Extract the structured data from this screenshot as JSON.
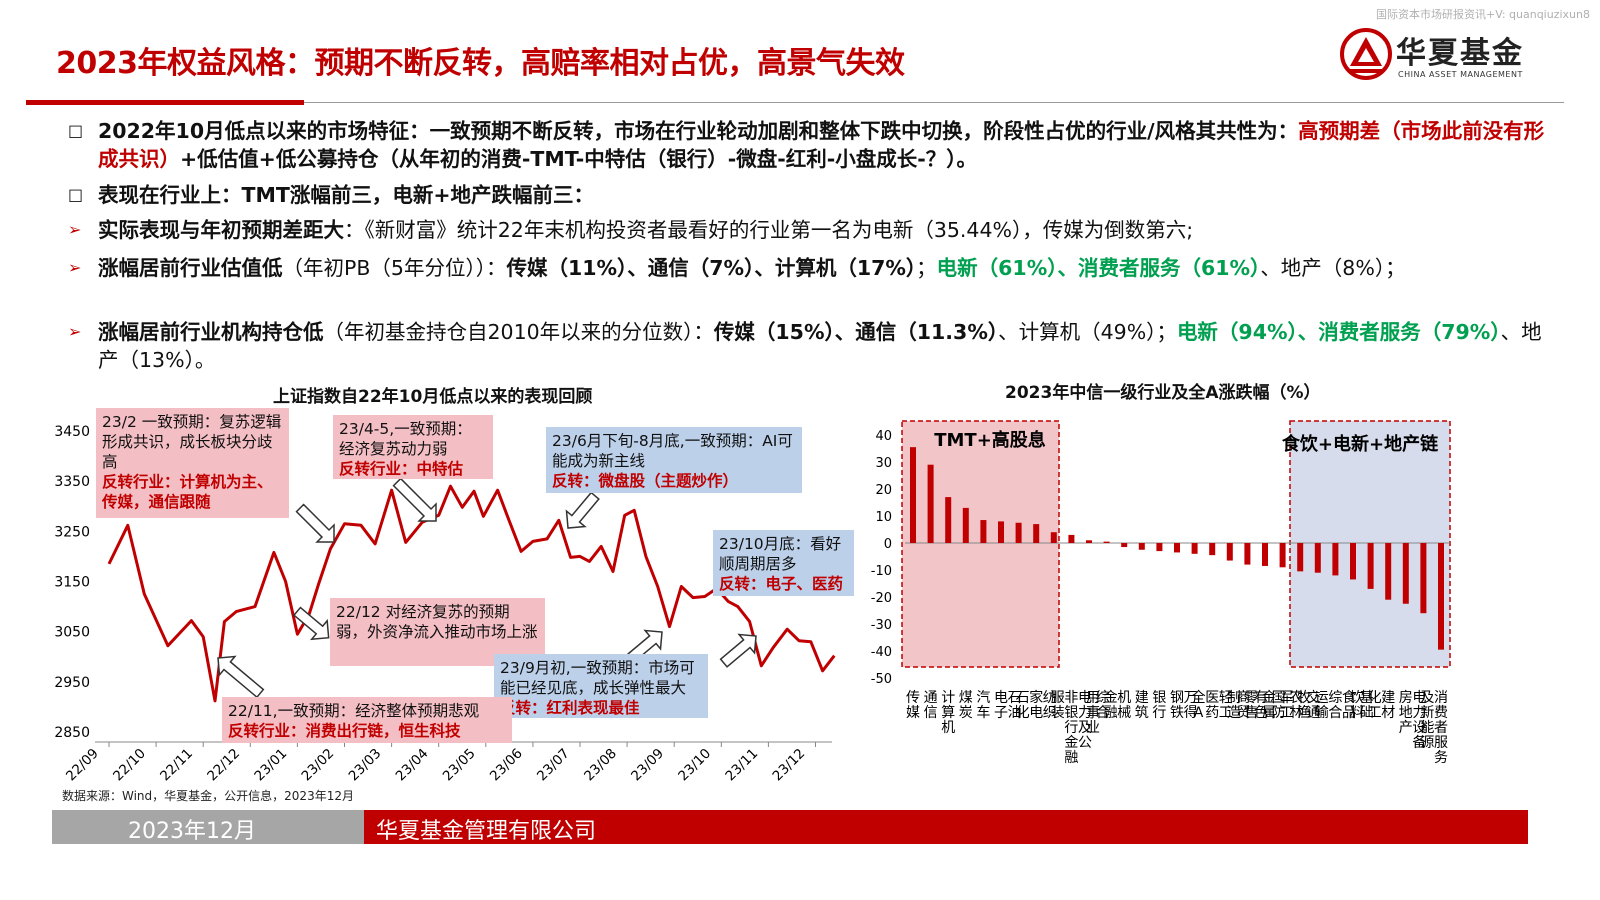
{
  "watermark": "国际资本市场研报资讯+V: quanqiuzixun8",
  "title": "2023年权益风格：预期不断反转，高赔率相对占优，高景气失效",
  "logo": {
    "name": "华夏基金",
    "sub": "CHINA ASSET MANAGEMENT",
    "color": "#c00000"
  },
  "bullets": {
    "b1": {
      "text1": "2022年10月低点以来的市场特征：一致预期不断反转，市场在行业轮动加剧和整体下跌中切换，阶段性占优的行业/风格其共性为：",
      "red1": "高预期差（市场此前没有形成共识）",
      "text2": "+低估值+低公募持仓（从年初的消费-TMT-中特估（银行）-微盘-红利-小盘成长-？）。"
    },
    "b2": {
      "text": "表现在行业上：TMT涨幅前三，电新+地产跌幅前三："
    },
    "b3": {
      "bold": "实际表现与年初预期差距大",
      "text": "：《新财富》统计22年末机构投资者最看好的行业第一名为电新（35.44%），传媒为倒数第六;"
    },
    "b4": {
      "bold": "涨幅居前行业估值低",
      "text": "（年初PB（5年分位））：",
      "b2": "传媒（11%）、通信（7%）、计算机（17%）",
      "sep": "；",
      "green": "电新（61%）、消费者服务（61%）",
      "tail": "、地产（8%）；"
    },
    "b5": {
      "bold": "涨幅居前行业机构持仓低",
      "text": "（年初基金持仓自2010年以来的分位数）：",
      "b2": "传媒（15%）、通信（11.3%）",
      "mid": "、计算机（49%）；",
      "green": "电新（94%）、消费者服务（79%）",
      "tail": "、地产（13%）。"
    },
    "markers": {
      "square": "□",
      "arrow": "➢"
    }
  },
  "left_chart_title": "上证指数自22年10月低点以来的表现回顾",
  "right_chart_title": "2023年中信一级行业及全A涨跌幅（%）",
  "annotations": {
    "a1": {
      "text": "23/2 一致预期：复苏逻辑形成共识，成长板块分歧高",
      "red": "反转行业：计算机为主、传媒，通信跟随"
    },
    "a2": {
      "text": "23/4-5,一致预期：经济复苏动力弱",
      "red": "反转行业：中特估"
    },
    "a3": {
      "text": "23/6月下旬-8月底,一致预期：AI可能成为新主线",
      "red": "反转：微盘股（主题炒作）"
    },
    "a4": {
      "text": "23/10月底：看好顺周期居多",
      "red": "反转：电子、医药"
    },
    "a5": {
      "text": "22/12 对经济复苏的预期弱，外资净流入推动市场上涨",
      "red": ""
    },
    "a6": {
      "text": "23/9月初,一致预期：市场可能已经见底，成长弹性最大",
      "red": "反转：红利表现最佳"
    },
    "a7": {
      "text": "22/11,一致预期：经济整体预期悲观",
      "red": "反转行业：消费出行链，恒生科技"
    }
  },
  "box_labels": {
    "left": "TMT+高股息",
    "right": "食饮+电新+地产链"
  },
  "source": "数据来源：Wind，华夏基金，公开信息，2023年12月",
  "footer": {
    "date": "2023年12月",
    "company": "华夏基金管理有限公司"
  },
  "colors": {
    "accent": "#c00000",
    "green": "#00a050",
    "pink_note": "#f4bfc4",
    "blue_note": "#bcd0ea",
    "pink_box": "#f2c5c9",
    "blue_box": "#d6dceb"
  },
  "chart_data": [
    {
      "type": "line",
      "title": "上证指数自22年10月低点以来的表现回顾",
      "ylim": [
        2850,
        3450
      ],
      "yticks": [
        2850,
        2950,
        3050,
        3150,
        3250,
        3350,
        3450
      ],
      "xticks": [
        "22/09",
        "22/10",
        "22/11",
        "22/12",
        "23/01",
        "23/02",
        "23/03",
        "23/04",
        "23/05",
        "23/06",
        "23/07",
        "23/08",
        "23/09",
        "23/10",
        "23/11",
        "23/12"
      ],
      "series": [
        {
          "x": [
            0,
            0.4,
            0.75,
            1.25,
            1.75,
            2.0,
            2.25,
            2.45,
            2.7,
            3.1,
            3.5,
            3.75,
            4.0,
            4.25,
            4.45,
            4.7,
            5.0,
            5.35,
            5.65,
            6.0,
            6.3,
            6.65,
            7.0,
            7.25,
            7.5,
            7.75,
            7.95,
            8.25,
            8.5,
            8.75,
            9.0,
            9.3,
            9.55,
            9.8,
            10.0,
            10.2,
            10.45,
            10.7,
            10.95,
            11.15,
            11.4,
            11.65,
            11.9,
            12.15,
            12.4,
            12.65,
            12.9,
            13.15,
            13.35,
            13.6,
            13.85,
            14.1,
            14.4,
            14.65,
            14.9,
            15.15,
            15.4
          ],
          "y": [
            3185,
            3262,
            3125,
            3022,
            3072,
            3040,
            2912,
            3070,
            3090,
            3100,
            3208,
            3150,
            3045,
            3085,
            3145,
            3215,
            3265,
            3262,
            3225,
            3332,
            3228,
            3268,
            3282,
            3340,
            3298,
            3330,
            3280,
            3332,
            3270,
            3210,
            3230,
            3235,
            3272,
            3198,
            3200,
            3190,
            3220,
            3170,
            3282,
            3292,
            3200,
            3140,
            3060,
            3140,
            3118,
            3120,
            3136,
            3110,
            3100,
            3070,
            2982,
            3018,
            3055,
            3032,
            3030,
            2972,
            3002
          ]
        }
      ]
    },
    {
      "type": "bar",
      "title": "2023年中信一级行业及全A涨跌幅（%）",
      "ylim": [
        -50,
        40
      ],
      "yticks": [
        40,
        30,
        20,
        10,
        0,
        -10,
        -20,
        -30,
        -40,
        -50
      ],
      "categories": [
        "传媒",
        "通信",
        "计算机",
        "煤炭",
        "汽车",
        "电子",
        "石油石化",
        "家电",
        "纺织服装",
        "非银行金融",
        "电力及公用事业",
        "综合金融",
        "机械",
        "建筑",
        "银行",
        "钢铁",
        "万得全A",
        "医药",
        "轻工制造",
        "商贸零售",
        "有色金属",
        "国防军工",
        "农林牧渔",
        "交通运输",
        "综合",
        "食品饮料",
        "基础化工",
        "建材",
        "房地产",
        "电力设备及新能源",
        "消费者服务"
      ],
      "values": [
        35.5,
        29,
        17,
        13,
        8.5,
        8,
        7.5,
        7,
        4,
        3,
        1,
        0.5,
        -1.5,
        -2.5,
        -3,
        -3.5,
        -4,
        -4.5,
        -6.5,
        -8,
        -8.5,
        -9,
        -10.5,
        -11,
        -12,
        -13.5,
        -17,
        -21,
        -22.5,
        -26,
        -39.5
      ]
    }
  ]
}
